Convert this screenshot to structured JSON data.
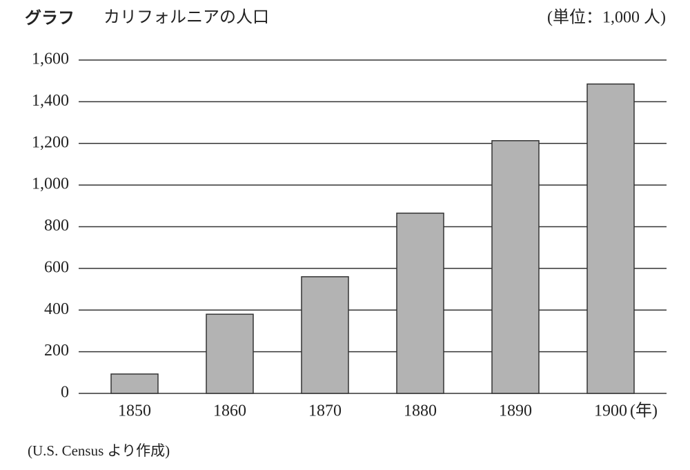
{
  "chart_data": {
    "type": "bar",
    "figure_label": "グラフ",
    "title": "カリフォルニアの人口",
    "unit_label": "(単位：1,000 人)",
    "x_label": "(年)",
    "source": "(U.S. Census より作成)",
    "categories": [
      "1850",
      "1860",
      "1870",
      "1880",
      "1890",
      "1900"
    ],
    "values": [
      93,
      380,
      560,
      865,
      1213,
      1485
    ],
    "color": "#b3b3b3",
    "ylim": [
      0,
      1600
    ],
    "yticks": [
      0,
      200,
      400,
      600,
      800,
      {
        "value": 1000,
        "label": "1,000"
      },
      {
        "value": 1200,
        "label": "1,200"
      },
      {
        "value": 1400,
        "label": "1,400"
      },
      {
        "value": 1600,
        "label": "1,600"
      }
    ],
    "grid": true
  }
}
